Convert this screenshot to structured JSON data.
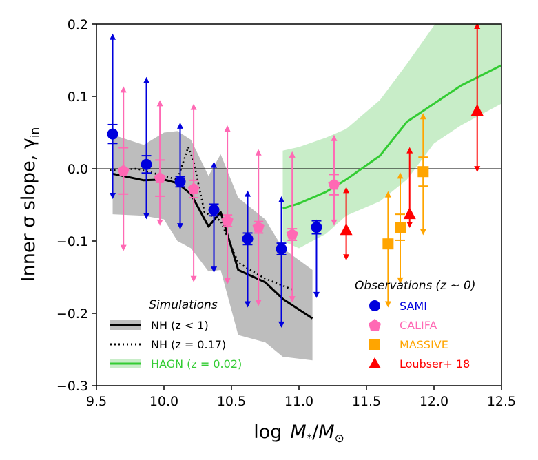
{
  "chart_data": {
    "type": "scatter",
    "xlabel_main": "log",
    "xlabel_var": "M",
    "xlabel_var_sub": "*",
    "xlabel_sep": "/",
    "xlabel_den": "M",
    "xlabel_den_sub": "⊙",
    "ylabel_main": "Inner σ slope, γ",
    "ylabel_sub": "in",
    "xlim": [
      9.5,
      12.5
    ],
    "ylim": [
      -0.3,
      0.2
    ],
    "xticks": [
      {
        "value": 9.5,
        "label": "9.5"
      },
      {
        "value": 10.0,
        "label": "10.0"
      },
      {
        "value": 10.5,
        "label": "10.5"
      },
      {
        "value": 11.0,
        "label": "11.0"
      },
      {
        "value": 11.5,
        "label": "11.5"
      },
      {
        "value": 12.0,
        "label": "12.0"
      },
      {
        "value": 12.5,
        "label": "12.5"
      }
    ],
    "yticks": [
      {
        "value": 0.2,
        "label": "0.2"
      },
      {
        "value": 0.1,
        "label": "0.1"
      },
      {
        "value": 0.0,
        "label": "0.0"
      },
      {
        "value": -0.1,
        "label": "−0.1"
      },
      {
        "value": -0.2,
        "label": "−0.2"
      },
      {
        "value": -0.3,
        "label": "−0.3"
      }
    ],
    "hline": 0,
    "simulations_title": "Simulations",
    "observations_title": "Observations",
    "observations_title_suffix": "(z ∼ 0)",
    "simulations": [
      {
        "name": "NH (z < 1)",
        "color": "#000000",
        "band_color": "#bdbdbd",
        "style": "solid",
        "x": [
          9.62,
          9.85,
          10.0,
          10.1,
          10.2,
          10.33,
          10.42,
          10.55,
          10.75,
          10.88,
          11.1
        ],
        "y": [
          -0.007,
          -0.016,
          -0.015,
          -0.02,
          -0.035,
          -0.08,
          -0.06,
          -0.14,
          -0.157,
          -0.18,
          -0.207
        ],
        "upper": [
          0.047,
          0.033,
          0.05,
          0.052,
          0.04,
          -0.01,
          0.02,
          -0.04,
          -0.07,
          -0.11,
          -0.14
        ],
        "lower": [
          -0.063,
          -0.065,
          -0.07,
          -0.1,
          -0.11,
          -0.142,
          -0.14,
          -0.23,
          -0.24,
          -0.26,
          -0.265
        ]
      },
      {
        "name": "NH (z = 0.17)",
        "color": "#000000",
        "style": "dotted",
        "x": [
          9.6,
          9.8,
          10.0,
          10.1,
          10.18,
          10.22,
          10.3,
          10.42,
          10.55,
          10.75,
          10.95
        ],
        "y": [
          -0.002,
          0.0,
          -0.01,
          -0.015,
          0.03,
          0.01,
          -0.06,
          -0.072,
          -0.13,
          -0.152,
          -0.167
        ]
      },
      {
        "name": "HAGN (z = 0.02)",
        "color": "#33cc33",
        "band_color": "#c8edc8",
        "style": "solid",
        "x": [
          10.88,
          11.0,
          11.2,
          11.35,
          11.6,
          11.8,
          12.0,
          12.2,
          12.5
        ],
        "y": [
          -0.055,
          -0.048,
          -0.032,
          -0.015,
          0.018,
          0.065,
          0.09,
          0.115,
          0.143
        ],
        "upper": [
          0.025,
          0.03,
          0.043,
          0.055,
          0.095,
          0.145,
          0.198,
          0.23,
          0.23
        ],
        "lower": [
          -0.1,
          -0.11,
          -0.09,
          -0.065,
          -0.045,
          -0.015,
          0.035,
          0.06,
          0.09
        ]
      }
    ],
    "observations": [
      {
        "name": "SAMI",
        "color": "#0000dd",
        "marker": "circle",
        "x": [
          9.62,
          9.87,
          10.12,
          10.37,
          10.62,
          10.87,
          11.13
        ],
        "y": [
          0.048,
          0.006,
          -0.018,
          -0.057,
          -0.097,
          -0.111,
          -0.081
        ],
        "err": [
          0.013,
          0.012,
          0.007,
          0.008,
          0.008,
          0.008,
          0.009
        ],
        "range_hi": [
          0.185,
          0.125,
          0.062,
          0.008,
          -0.032,
          -0.04,
          -0.072
        ],
        "range_lo": [
          -0.04,
          -0.068,
          -0.082,
          -0.142,
          -0.19,
          -0.218,
          -0.177
        ]
      },
      {
        "name": "CALIFA",
        "color": "#ff69b4",
        "marker": "pentagon",
        "x": [
          9.7,
          9.97,
          10.22,
          10.47,
          10.7,
          10.95,
          11.26
        ],
        "y": [
          -0.003,
          -0.013,
          -0.028,
          -0.072,
          -0.081,
          -0.091,
          -0.022
        ],
        "err": [
          0.032,
          0.025,
          0.012,
          0.008,
          0.008,
          0.008,
          0.014
        ],
        "range_hi": [
          0.112,
          0.093,
          0.088,
          0.058,
          0.025,
          0.022,
          0.045
        ],
        "range_lo": [
          -0.112,
          -0.077,
          -0.155,
          -0.158,
          -0.188,
          -0.183,
          -0.077
        ]
      },
      {
        "name": "MASSIVE",
        "color": "#ffa500",
        "marker": "square",
        "x": [
          11.66,
          11.75,
          11.92
        ],
        "y": [
          -0.104,
          -0.081,
          -0.004
        ],
        "err": [
          0.0,
          0.018,
          0.02
        ],
        "range_hi": [
          -0.033,
          -0.007,
          0.075
        ],
        "range_lo": [
          -0.19,
          -0.157,
          -0.09
        ]
      },
      {
        "name": "Loubser+ 18",
        "color": "#ff0000",
        "marker": "triangle",
        "x": [
          11.35,
          11.82,
          12.32
        ],
        "y": [
          -0.085,
          -0.063,
          0.08
        ],
        "err": [
          0.0,
          0.0,
          0.0
        ],
        "range_hi": [
          -0.027,
          0.028,
          0.2
        ],
        "range_lo": [
          -0.125,
          -0.08,
          -0.003
        ]
      }
    ]
  }
}
